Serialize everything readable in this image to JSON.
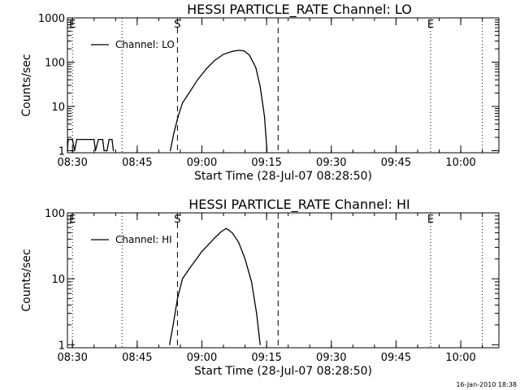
{
  "footer_timestamp": "16-Jan-2010 18:38",
  "chart_data": [
    {
      "type": "line",
      "title": "HESSI PARTICLE_RATE Channel: LO",
      "xlabel": "Start Time (28-Jul-07 08:28:50)",
      "ylabel": "Counts/sec",
      "y_scale": "log",
      "xlim": [
        "08:28:50",
        "10:08:50"
      ],
      "ylim": [
        0.9,
        1000
      ],
      "x_tick_labels": [
        "08:30",
        "08:45",
        "09:00",
        "09:15",
        "09:30",
        "09:45",
        "10:00"
      ],
      "y_tick_labels": [
        "1",
        "10",
        "100",
        "1000"
      ],
      "legend": {
        "position": "top-left",
        "entries": [
          "Channel: LO"
        ]
      },
      "markers": [
        {
          "label": "E",
          "time": "08:30:00",
          "style": "dotted"
        },
        {
          "label": "",
          "time": "08:41:30",
          "style": "dotted"
        },
        {
          "label": "S",
          "time": "08:54:20",
          "style": "dashed"
        },
        {
          "label": "",
          "time": "09:17:40",
          "style": "dashed"
        },
        {
          "label": "E",
          "time": "09:53:00",
          "style": "dotted"
        },
        {
          "label": "",
          "time": "10:05:00",
          "style": "dotted"
        }
      ],
      "series": [
        {
          "name": "Channel: LO",
          "segments": [
            [
              [
                "08:28:50",
                1
              ],
              [
                "08:29:00",
                1.8
              ],
              [
                "08:30:00",
                1.8
              ],
              [
                "08:30:30",
                1
              ],
              [
                "08:31:00",
                1.8
              ],
              [
                "08:35:00",
                1.8
              ],
              [
                "08:35:20",
                1
              ],
              [
                "08:36:00",
                1.8
              ],
              [
                "08:37:00",
                1.8
              ],
              [
                "08:37:20",
                1
              ],
              [
                "08:38:00",
                1
              ],
              [
                "08:38:30",
                1.8
              ],
              [
                "08:39:10",
                1.8
              ],
              [
                "08:39:30",
                1
              ]
            ],
            [
              [
                "08:52:40",
                1
              ],
              [
                "08:53:30",
                2.5
              ],
              [
                "08:54:30",
                6
              ],
              [
                "08:55:30",
                12
              ],
              [
                "08:57:00",
                20
              ],
              [
                "08:59:00",
                40
              ],
              [
                "09:01:00",
                70
              ],
              [
                "09:03:00",
                110
              ],
              [
                "09:05:00",
                150
              ],
              [
                "09:07:00",
                175
              ],
              [
                "09:08:30",
                185
              ],
              [
                "09:09:45",
                180
              ],
              [
                "09:11:00",
                145
              ],
              [
                "09:12:30",
                75
              ],
              [
                "09:13:30",
                28
              ],
              [
                "09:14:30",
                6
              ],
              [
                "09:15:05",
                1
              ]
            ]
          ]
        }
      ]
    },
    {
      "type": "line",
      "title": "HESSI PARTICLE_RATE Channel: HI",
      "xlabel": "Start Time (28-Jul-07 08:28:50)",
      "ylabel": "Counts/sec",
      "y_scale": "log",
      "xlim": [
        "08:28:50",
        "10:08:50"
      ],
      "ylim": [
        0.9,
        100
      ],
      "x_tick_labels": [
        "08:30",
        "08:45",
        "09:00",
        "09:15",
        "09:30",
        "09:45",
        "10:00"
      ],
      "y_tick_labels": [
        "1",
        "10",
        "100"
      ],
      "legend": {
        "position": "top-left",
        "entries": [
          "Channel: HI"
        ]
      },
      "markers": [
        {
          "label": "E",
          "time": "08:30:00",
          "style": "dotted"
        },
        {
          "label": "",
          "time": "08:41:30",
          "style": "dotted"
        },
        {
          "label": "S",
          "time": "08:54:20",
          "style": "dashed"
        },
        {
          "label": "",
          "time": "09:17:40",
          "style": "dashed"
        },
        {
          "label": "E",
          "time": "09:53:00",
          "style": "dotted"
        },
        {
          "label": "",
          "time": "10:05:00",
          "style": "dotted"
        }
      ],
      "series": [
        {
          "name": "Channel: HI",
          "segments": [
            [
              [
                "08:52:30",
                1
              ],
              [
                "08:53:20",
                2
              ],
              [
                "08:54:20",
                5
              ],
              [
                "08:55:30",
                10
              ],
              [
                "08:57:00",
                14
              ],
              [
                "08:58:30",
                19
              ],
              [
                "09:00:00",
                26
              ],
              [
                "09:01:30",
                33
              ],
              [
                "09:03:00",
                42
              ],
              [
                "09:04:30",
                52
              ],
              [
                "09:05:40",
                58
              ],
              [
                "09:07:00",
                50
              ],
              [
                "09:08:30",
                36
              ],
              [
                "09:10:00",
                20
              ],
              [
                "09:11:30",
                9
              ],
              [
                "09:12:40",
                3
              ],
              [
                "09:13:30",
                1
              ]
            ]
          ]
        }
      ]
    }
  ]
}
